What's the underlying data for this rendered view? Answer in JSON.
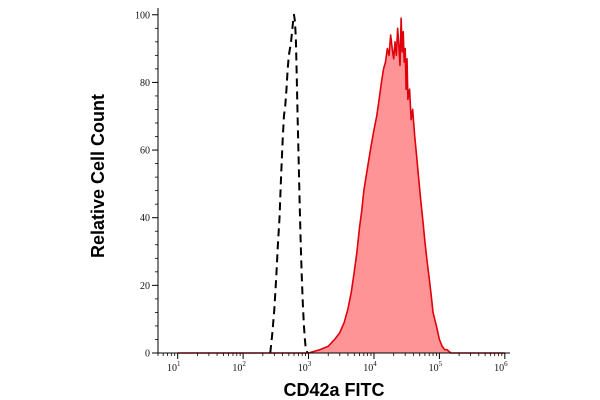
{
  "chart_data": {
    "type": "area",
    "xlabel": "CD42a FITC",
    "ylabel": "Relative Cell Count",
    "xscale": "log",
    "xlim": [
      5,
      1200000
    ],
    "ylim": [
      0,
      102
    ],
    "grid": false,
    "legend": "none",
    "x_ticks": [
      {
        "value": 10,
        "base": "10",
        "exp": "1"
      },
      {
        "value": 100,
        "base": "10",
        "exp": "2"
      },
      {
        "value": 1000,
        "base": "10",
        "exp": "3"
      },
      {
        "value": 10000,
        "base": "10",
        "exp": "4"
      },
      {
        "value": 100000,
        "base": "10",
        "exp": "5"
      },
      {
        "value": 1000000,
        "base": "10",
        "exp": "6"
      }
    ],
    "y_ticks": [
      {
        "value": 0,
        "label": "0"
      },
      {
        "value": 20,
        "label": "20"
      },
      {
        "value": 40,
        "label": "40"
      },
      {
        "value": 60,
        "label": "60"
      },
      {
        "value": 80,
        "label": "80"
      },
      {
        "value": 100,
        "label": "100"
      }
    ],
    "series": [
      {
        "style": "dashed",
        "color": "#000000",
        "x": [
          260,
          280,
          300,
          320,
          340,
          360,
          380,
          400,
          420,
          440,
          460,
          480,
          500,
          520,
          540,
          560,
          580,
          600,
          620,
          640,
          660,
          680,
          700,
          730,
          760,
          790,
          820,
          850,
          880,
          900,
          930,
          960
        ],
        "y": [
          0,
          6,
          13,
          22,
          32,
          40,
          52,
          62,
          70,
          73,
          78,
          84,
          88,
          90,
          92,
          95,
          98,
          100,
          98,
          93,
          82,
          70,
          60,
          45,
          32,
          22,
          14,
          8,
          4,
          2,
          1,
          0
        ]
      },
      {
        "style": "filled",
        "color": "#e0000b",
        "fill": "#ff9496",
        "x": [
          10,
          100,
          1000,
          1500,
          2000,
          2500,
          3000,
          3500,
          4000,
          4500,
          5000,
          5500,
          6000,
          6500,
          7000,
          8000,
          9000,
          10000,
          11000,
          12000,
          13000,
          14000,
          15000,
          16000,
          17000,
          18000,
          19000,
          20000,
          21000,
          22000,
          23000,
          24000,
          25000,
          26000,
          27000,
          28000,
          29000,
          30000,
          31000,
          32000,
          33000,
          35000,
          37000,
          39000,
          42000,
          45000,
          48000,
          52000,
          56000,
          60000,
          65000,
          70000,
          75000,
          80000,
          90000,
          100000,
          110000,
          120000,
          130000,
          150000,
          200000,
          300000,
          1000000
        ],
        "y": [
          0,
          0,
          0,
          1,
          2,
          4,
          6,
          9,
          13,
          18,
          24,
          30,
          37,
          42,
          48,
          55,
          61,
          66,
          70,
          75,
          80,
          84,
          86,
          90,
          88,
          94,
          90,
          87,
          92,
          88,
          96,
          91,
          85,
          99,
          89,
          95,
          86,
          90,
          78,
          87,
          75,
          78,
          69,
          72,
          64,
          58,
          52,
          45,
          39,
          33,
          27,
          22,
          17,
          12,
          8,
          4,
          2,
          1,
          1,
          0,
          0,
          0,
          0
        ]
      }
    ]
  }
}
